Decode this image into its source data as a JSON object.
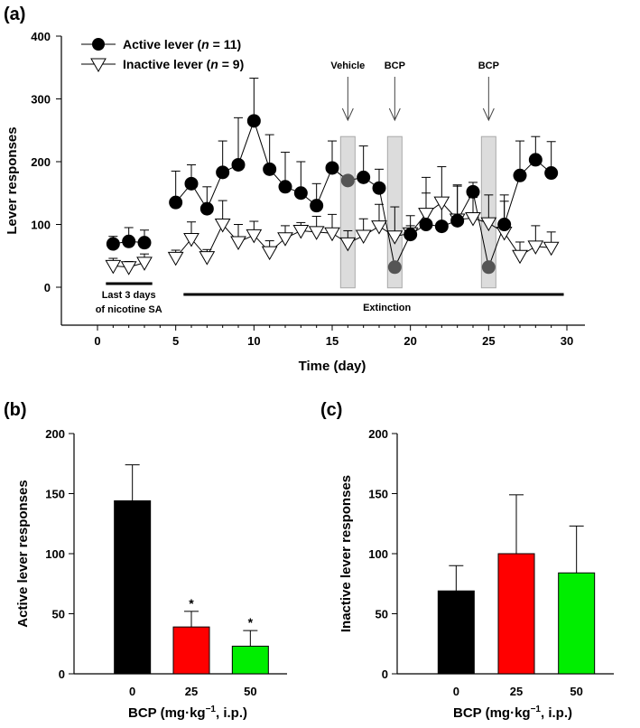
{
  "chart_data": [
    {
      "panel": "(a)",
      "type": "line",
      "xlabel": "Time (day)",
      "ylabel": "Lever responses",
      "xlim": [
        -2,
        30
      ],
      "ylim": [
        0,
        400
      ],
      "xticks": [
        0,
        5,
        10,
        15,
        20,
        25,
        30
      ],
      "yticks": [
        0,
        100,
        200,
        300,
        400
      ],
      "legend": {
        "placement": "top-left",
        "entries": [
          {
            "prefix": "Active lever (",
            "n_symbol": "n",
            "suffix": " = 11)"
          },
          {
            "prefix": "Inactive lever (",
            "n_symbol": "n",
            "suffix": " = 9)"
          }
        ]
      },
      "annotations": [
        {
          "label": "Vehicle",
          "day": 16
        },
        {
          "label": "BCP",
          "day": 19
        },
        {
          "label": "BCP",
          "day": 25
        }
      ],
      "baseline_label": "Last 3 days of nicotine SA",
      "baseline_days": [
        1,
        3.5
      ],
      "extinction_label": "Extinction",
      "extinction_days": [
        5.5,
        29.8
      ],
      "series": [
        {
          "name": "Active lever",
          "segments": [
            {
              "x": [
                1,
                2,
                3
              ],
              "y": [
                69,
                73,
                71
              ],
              "err": [
                12,
                22,
                20
              ]
            },
            {
              "x": [
                5,
                6,
                7,
                8,
                9,
                10,
                11,
                12,
                13,
                14,
                15,
                16,
                17,
                18,
                19,
                20,
                21,
                22,
                23,
                24,
                25,
                26,
                27,
                28,
                29
              ],
              "y": [
                135,
                165,
                125,
                183,
                195,
                265,
                188,
                160,
                150,
                130,
                190,
                170,
                175,
                158,
                32,
                84,
                100,
                97,
                106,
                152,
                32,
                100,
                178,
                203,
                182
              ],
              "err": [
                50,
                30,
                35,
                50,
                75,
                68,
                55,
                55,
                50,
                35,
                43,
                0,
                50,
                30,
                0,
                30,
                50,
                40,
                55,
                15,
                0,
                47,
                55,
                37,
                50
              ]
            }
          ]
        },
        {
          "name": "Inactive lever",
          "segments": [
            {
              "x": [
                1,
                2,
                3
              ],
              "y": [
                34,
                32,
                39
              ],
              "err": [
                12,
                9,
                14
              ]
            },
            {
              "x": [
                5,
                6,
                7,
                8,
                9,
                10,
                11,
                12,
                13,
                14,
                15,
                16,
                17,
                18,
                19,
                20,
                21,
                22,
                23,
                24,
                25,
                26,
                27,
                28,
                29
              ],
              "y": [
                47,
                77,
                48,
                100,
                72,
                83,
                56,
                78,
                90,
                88,
                86,
                70,
                82,
                97,
                81,
                86,
                117,
                135,
                108,
                110,
                102,
                87,
                50,
                65,
                63
              ],
              "err": [
                12,
                27,
                12,
                38,
                28,
                22,
                18,
                20,
                13,
                25,
                30,
                20,
                27,
                35,
                47,
                12,
                58,
                57,
                55,
                33,
                45,
                50,
                22,
                33,
                25
              ]
            }
          ]
        }
      ]
    },
    {
      "panel": "(b)",
      "type": "bar",
      "xlabel": "BCP (mg·kg−1, i.p.)",
      "ylabel": "Active lever responses",
      "ylim": [
        0,
        200
      ],
      "yticks": [
        0,
        50,
        100,
        150,
        200
      ],
      "categories": [
        "0",
        "25",
        "50"
      ],
      "values": [
        144,
        39,
        23
      ],
      "errors": [
        30,
        13,
        13
      ],
      "colors": [
        "#000000",
        "#ff0000",
        "#00ee00"
      ],
      "significance": [
        "",
        "*",
        "*"
      ]
    },
    {
      "panel": "(c)",
      "type": "bar",
      "xlabel": "BCP (mg·kg−1, i.p.)",
      "ylabel": "Inactive lever responses",
      "ylim": [
        0,
        200
      ],
      "yticks": [
        0,
        50,
        100,
        150,
        200
      ],
      "categories": [
        "0",
        "25",
        "50"
      ],
      "values": [
        69,
        100,
        84
      ],
      "errors": [
        21,
        49,
        39
      ],
      "colors": [
        "#000000",
        "#ff0000",
        "#00ee00"
      ],
      "significance": [
        "",
        "",
        ""
      ]
    }
  ]
}
